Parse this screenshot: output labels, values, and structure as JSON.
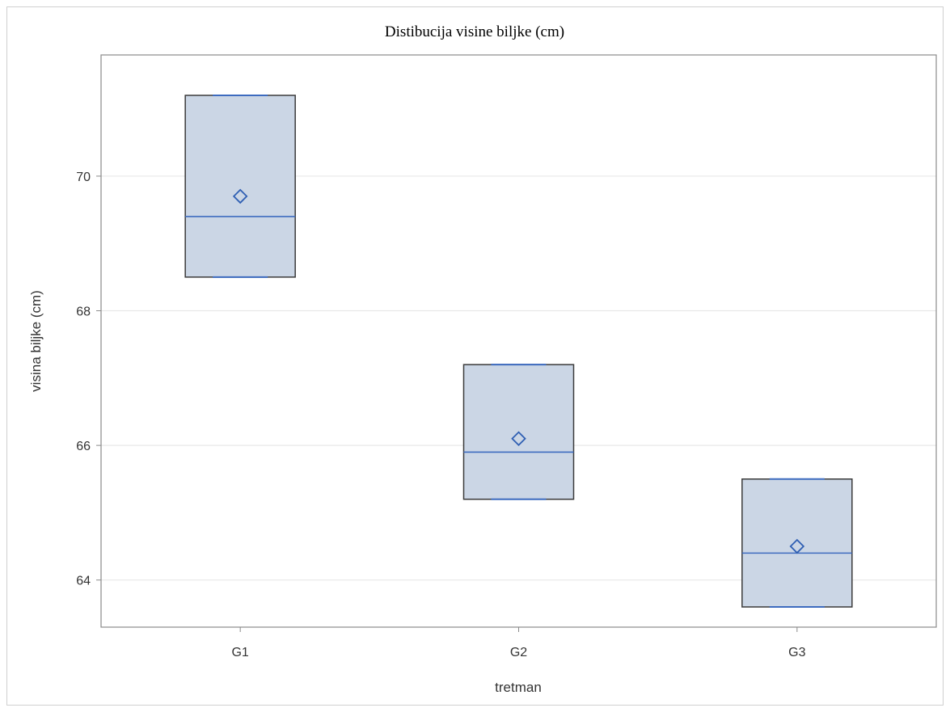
{
  "chart_data": {
    "type": "box",
    "title": "Distibucija visine biljke (cm)",
    "xlabel": "tretman",
    "ylabel": "visina biljke (cm)",
    "categories": [
      "G1",
      "G2",
      "G3"
    ],
    "ylim": [
      63.3,
      71.8
    ],
    "yticks": [
      64,
      66,
      68,
      70
    ],
    "grid": true,
    "boxes": [
      {
        "category": "G1",
        "min": 68.5,
        "q1": 68.5,
        "median": 69.4,
        "q3": 71.2,
        "max": 71.2,
        "mean": 69.7
      },
      {
        "category": "G2",
        "min": 65.2,
        "q1": 65.2,
        "median": 65.9,
        "q3": 67.2,
        "max": 67.2,
        "mean": 66.1
      },
      {
        "category": "G3",
        "min": 63.6,
        "q1": 63.6,
        "median": 64.4,
        "q3": 65.5,
        "max": 65.5,
        "mean": 64.5
      }
    ],
    "colors": {
      "box_fill": "#cbd6e5",
      "box_edge": "#3a3a3a",
      "median_line": "#3d6bbf",
      "mean_marker": "#2f5fb3",
      "grid": "#e8e8e8",
      "axis": "#8a8a8a"
    }
  }
}
